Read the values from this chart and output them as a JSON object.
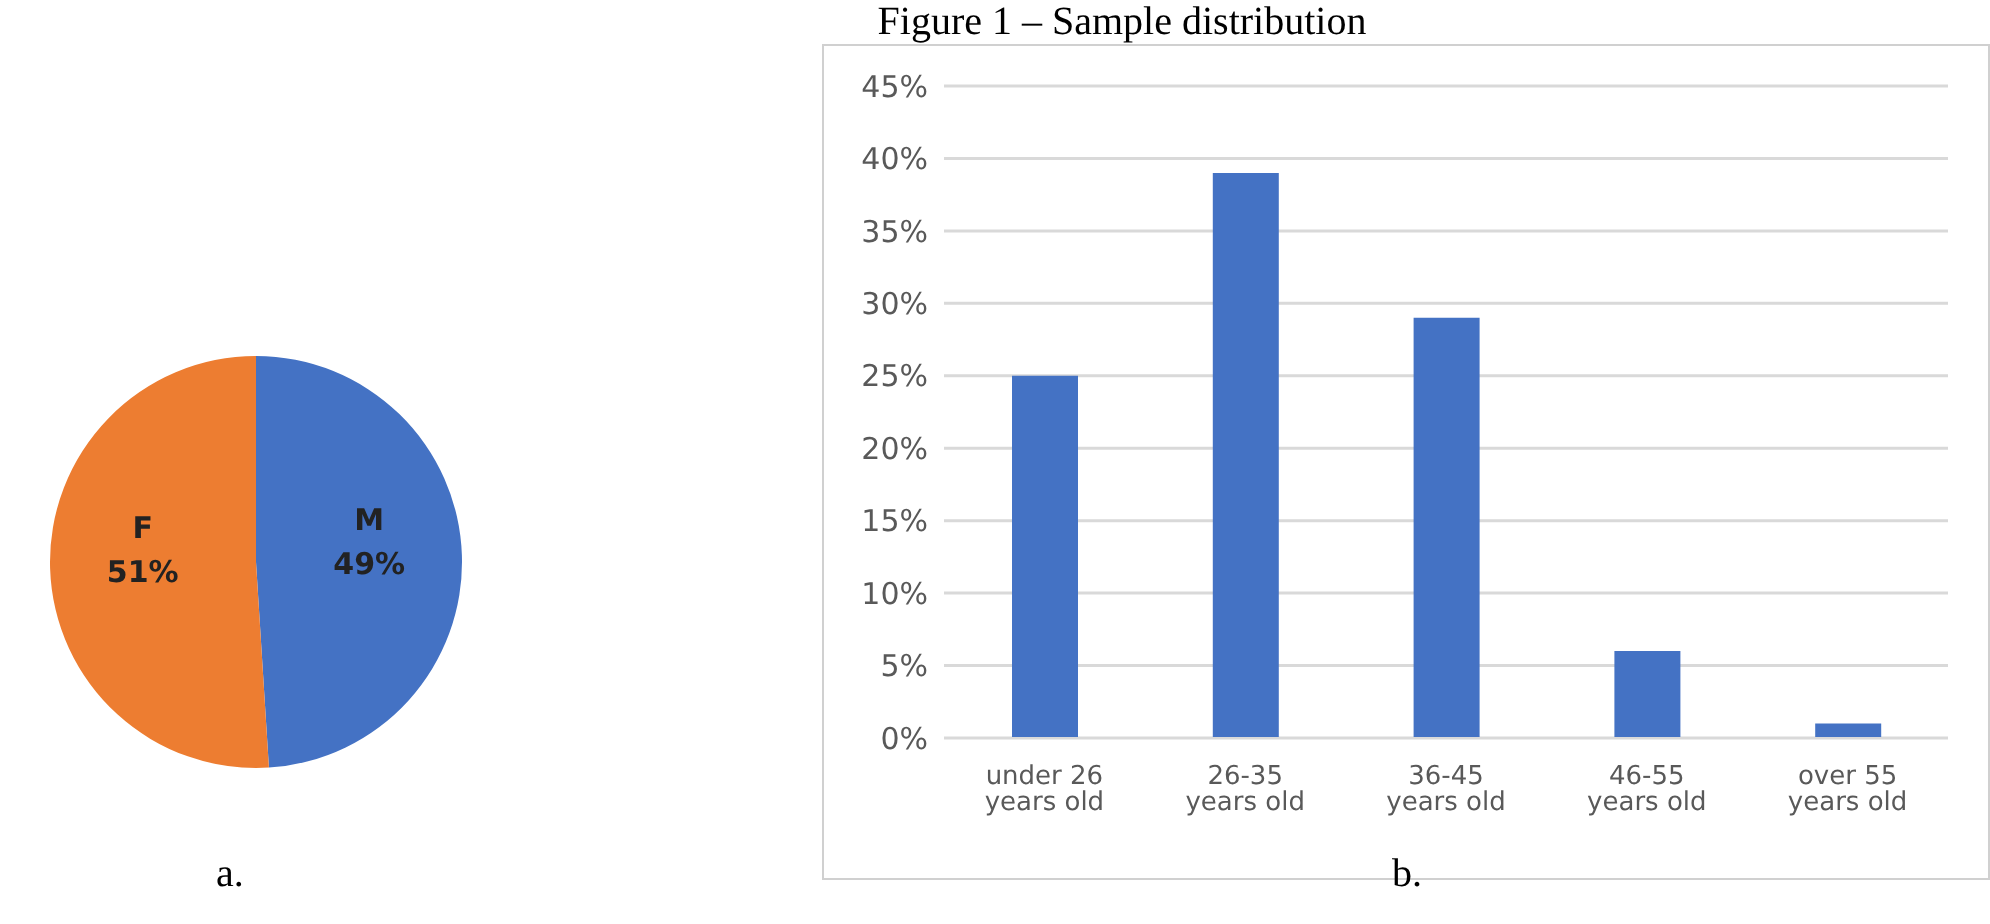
{
  "chart_data": [
    {
      "type": "pie",
      "categories": [
        "M",
        "F"
      ],
      "values": [
        49,
        51
      ],
      "colors": [
        "#4472c4",
        "#ed7d31"
      ],
      "value_labels": [
        "49%",
        "51%"
      ],
      "annotations": [
        "a."
      ]
    },
    {
      "type": "bar",
      "title": "Figure 1 – Sample distribution",
      "categories": [
        "under 26 years old",
        "26-35 years old",
        "36-45 years old",
        "46-55 years old",
        "over 55 years old"
      ],
      "values": [
        25,
        39,
        29,
        6,
        1
      ],
      "color": "#4472c4",
      "ylim": [
        0,
        45
      ],
      "yticks": [
        {
          "value": 0,
          "label": "0%"
        },
        {
          "value": 5,
          "label": "5%"
        },
        {
          "value": 10,
          "label": "10%"
        },
        {
          "value": 15,
          "label": "15%"
        },
        {
          "value": 20,
          "label": "20%"
        },
        {
          "value": 25,
          "label": "25%"
        },
        {
          "value": 30,
          "label": "30%"
        },
        {
          "value": 35,
          "label": "35%"
        },
        {
          "value": 40,
          "label": "40%"
        },
        {
          "value": 45,
          "label": "45%"
        }
      ],
      "grid": "y",
      "annotations": [
        "b."
      ]
    }
  ]
}
